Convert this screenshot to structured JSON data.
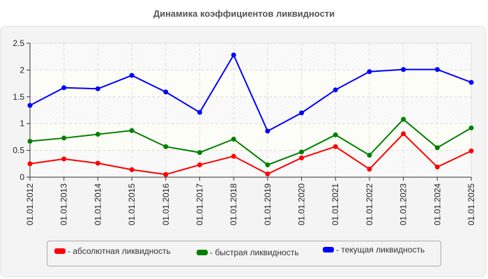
{
  "title": "Динамика коэффициентов ликвидности",
  "chart_data": {
    "type": "line",
    "title": "Динамика коэффициентов ликвидности",
    "xlabel": "",
    "ylabel": "",
    "ylim": [
      0,
      2.5
    ],
    "yticks": [
      "0",
      "0.5",
      "1",
      "1.5",
      "2",
      "2.5"
    ],
    "grid": true,
    "legend_position": "bottom",
    "categories": [
      "01.01.2012",
      "01.01.2013",
      "01.01.2014",
      "01.01.2015",
      "01.01.2016",
      "01.01.2017",
      "01.01.2018",
      "01.01.2019",
      "01.01.2020",
      "01.01.2021",
      "01.01.2022",
      "01.01.2023",
      "01.01.2024",
      "01.01.2025"
    ],
    "series": [
      {
        "name": "абсолютная ликвидность",
        "color": "#ff0000",
        "values": [
          0.25,
          0.34,
          0.26,
          0.14,
          0.05,
          0.23,
          0.39,
          0.06,
          0.36,
          0.57,
          0.15,
          0.81,
          0.19,
          0.49
        ]
      },
      {
        "name": "быстрая ликвидность",
        "color": "#008000",
        "values": [
          0.67,
          0.73,
          0.8,
          0.87,
          0.57,
          0.46,
          0.71,
          0.23,
          0.47,
          0.79,
          0.41,
          1.08,
          0.55,
          0.92
        ]
      },
      {
        "name": "текущая ликвидность",
        "color": "#0000ff",
        "values": [
          1.34,
          1.67,
          1.65,
          1.9,
          1.59,
          1.21,
          2.28,
          0.86,
          1.2,
          1.63,
          1.97,
          2.01,
          2.01,
          1.77
        ]
      }
    ]
  },
  "legend": [
    {
      "label": "- абсолютная ликвидность",
      "color": "#ff0000"
    },
    {
      "label": "- быстрая ликвидность",
      "color": "#008000"
    },
    {
      "label": "- текущая ликвидность",
      "color": "#0000ff"
    }
  ]
}
